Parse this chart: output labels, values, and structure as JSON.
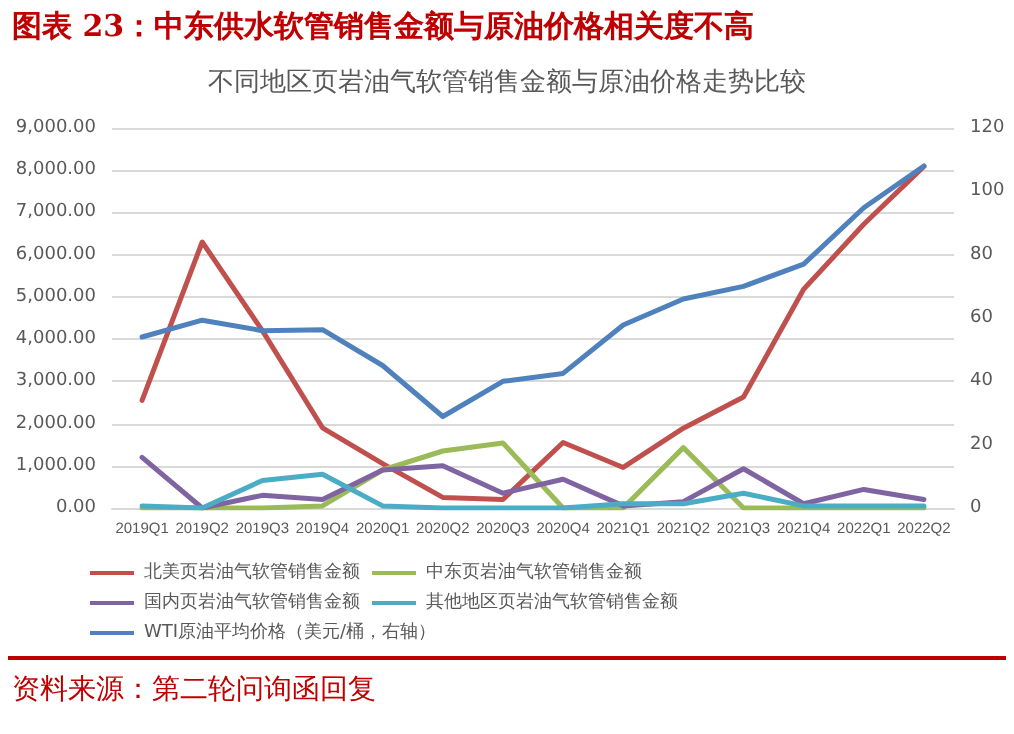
{
  "chart_data": {
    "type": "line",
    "title": "图表 23：中东供水软管销售金额与原油价格相关度不高",
    "subtitle": "不同地区页岩油气软管销售金额与原油价格走势比较",
    "categories": [
      "2019Q1",
      "2019Q2",
      "2019Q3",
      "2019Q4",
      "2020Q1",
      "2020Q2",
      "2020Q3",
      "2020Q4",
      "2021Q1",
      "2021Q2",
      "2021Q3",
      "2021Q4",
      "2022Q1",
      "2022Q2"
    ],
    "series": [
      {
        "name": "北美页岩油气软管销售金额",
        "color": "#c0504d",
        "values": [
          2550,
          6300,
          4200,
          1900,
          1050,
          250,
          200,
          1550,
          960,
          1890,
          2630,
          5180,
          6720,
          8090
        ]
      },
      {
        "name": "中东页岩油气软管销售金额",
        "color": "#9bbb59",
        "values": [
          0,
          0,
          0,
          50,
          900,
          1350,
          1540,
          0,
          0,
          1430,
          0,
          0,
          0,
          0
        ]
      },
      {
        "name": "国内页岩油气软管销售金额",
        "color": "#8064a2",
        "values": [
          1200,
          0,
          300,
          200,
          900,
          1000,
          350,
          680,
          50,
          150,
          930,
          100,
          440,
          200
        ]
      },
      {
        "name": "其他地区页岩油气软管销售金额",
        "color": "#4bacc6",
        "values": [
          50,
          0,
          650,
          800,
          50,
          0,
          0,
          0,
          100,
          100,
          350,
          50,
          50,
          50
        ]
      },
      {
        "name": "WTI原油平均价格（美元/桶，右轴）",
        "color": "#4f81bd",
        "axis": "y2",
        "values": [
          54,
          59.3,
          56,
          56.3,
          45,
          28.9,
          40,
          42.5,
          57.8,
          66,
          70,
          77,
          94.8,
          108
        ]
      }
    ],
    "ylim": [
      0,
      9000
    ],
    "yticks": [
      {
        "value": 0,
        "label": "0.00"
      },
      {
        "value": 1000,
        "label": "1,000.00"
      },
      {
        "value": 2000,
        "label": "2,000.00"
      },
      {
        "value": 3000,
        "label": "3,000.00"
      },
      {
        "value": 4000,
        "label": "4,000.00"
      },
      {
        "value": 5000,
        "label": "5,000.00"
      },
      {
        "value": 6000,
        "label": "6,000.00"
      },
      {
        "value": 7000,
        "label": "7,000.00"
      },
      {
        "value": 8000,
        "label": "8,000.00"
      },
      {
        "value": 9000,
        "label": "9,000.00"
      }
    ],
    "y2lim": [
      0,
      120
    ],
    "y2ticks": [
      0,
      20,
      40,
      60,
      80,
      100,
      120
    ],
    "grid": "y",
    "legend": "bottom",
    "marker": "none",
    "line_style": "solid",
    "annotations": [
      "资料来源：第二轮问询函回复"
    ]
  }
}
